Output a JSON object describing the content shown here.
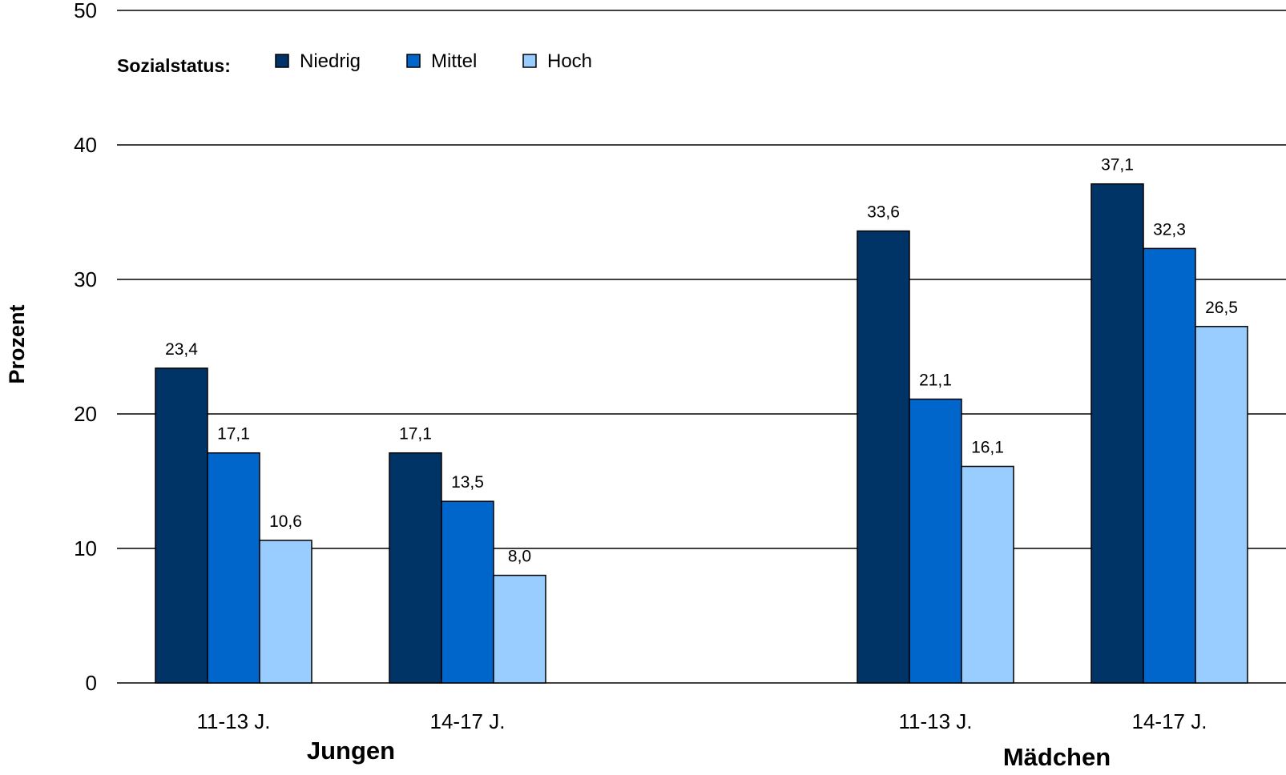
{
  "chart_data": {
    "type": "bar",
    "ylabel": "Prozent",
    "ylim": [
      0,
      50
    ],
    "yticks": [
      0,
      10,
      20,
      30,
      40,
      50
    ],
    "grid": true,
    "legend": {
      "title": "Sozialstatus:",
      "placement": "top-left"
    },
    "groups": [
      {
        "name": "Jungen",
        "categories": [
          "11-13 J.",
          "14-17 J."
        ]
      },
      {
        "name": "Mädchen",
        "categories": [
          "11-13 J.",
          "14-17 J."
        ]
      }
    ],
    "categories": [
      "11-13 J.",
      "14-17 J.",
      "11-13 J.",
      "14-17 J."
    ],
    "series": [
      {
        "name": "Niedrig",
        "color": "#003366",
        "values": [
          23.4,
          17.1,
          33.6,
          37.1
        ],
        "labels": [
          "23,4",
          "17,1",
          "33,6",
          "37,1"
        ]
      },
      {
        "name": "Mittel",
        "color": "#0066CC",
        "values": [
          17.1,
          13.5,
          21.1,
          32.3
        ],
        "labels": [
          "17,1",
          "13,5",
          "21,1",
          "32,3"
        ]
      },
      {
        "name": "Hoch",
        "color": "#99CCFF",
        "values": [
          10.6,
          8.0,
          16.1,
          26.5
        ],
        "labels": [
          "10,6",
          "8,0",
          "16,1",
          "26,5"
        ]
      }
    ]
  }
}
